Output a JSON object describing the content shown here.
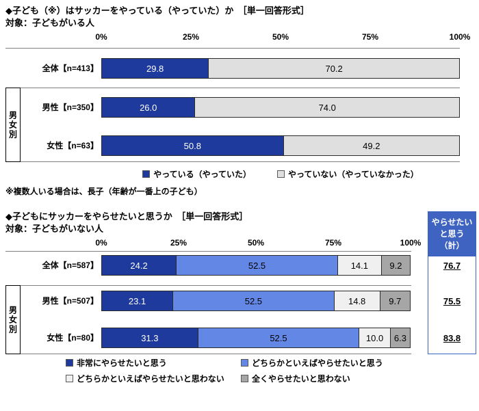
{
  "colors": {
    "dark_blue": "#1e3a9c",
    "light_gray": "#dfdfdf",
    "mid_blue": "#6287e5",
    "pale_gray": "#f0f0f0",
    "dark_gray": "#a6a6a6",
    "summary_blue": "#3f63c1"
  },
  "chart_data": [
    {
      "type": "bar",
      "orientation": "horizontal",
      "stacked": true,
      "title": "◆子ども（※）はサッカーをやっている（やっていた）か　［単一回答形式］",
      "subtitle": "対象：子どもがいる人",
      "categories": [
        "全体【n=413】",
        "男性【n=350】",
        "女性【n=63】"
      ],
      "group_label": "男女別",
      "xlim": [
        0,
        100
      ],
      "ticks": [
        "0%",
        "25%",
        "50%",
        "75%",
        "100%"
      ],
      "series": [
        {
          "name": "やっている（やっていた）",
          "color": "#1e3a9c",
          "text_color": "#ffffff",
          "values": [
            29.8,
            26.0,
            50.8
          ]
        },
        {
          "name": "やっていない（やっていなかった）",
          "color": "#dfdfdf",
          "text_color": "#000000",
          "values": [
            70.2,
            74.0,
            49.2
          ]
        }
      ],
      "footnote": "※複数人いる場合は、長子（年齢が一番上の子ども）"
    },
    {
      "type": "bar",
      "orientation": "horizontal",
      "stacked": true,
      "title": "◆子どもにサッカーをやらせたいと思うか　［単一回答形式］",
      "subtitle": "対象：子どもがいない人",
      "categories": [
        "全体【n=587】",
        "男性【n=507】",
        "女性【n=80】"
      ],
      "group_label": "男女別",
      "xlim": [
        0,
        100
      ],
      "ticks": [
        "0%",
        "25%",
        "50%",
        "75%",
        "100%"
      ],
      "series": [
        {
          "name": "非常にやらせたいと思う",
          "color": "#1e3a9c",
          "text_color": "#ffffff",
          "values": [
            24.2,
            23.1,
            31.3
          ]
        },
        {
          "name": "どちらかといえばやらせたいと思う",
          "color": "#6287e5",
          "text_color": "#000000",
          "values": [
            52.5,
            52.5,
            52.5
          ]
        },
        {
          "name": "どちらかといえばやらせたいと思わない",
          "color": "#f0f0f0",
          "text_color": "#000000",
          "values": [
            14.1,
            14.8,
            10.0
          ]
        },
        {
          "name": "全くやらせたいと思わない",
          "color": "#a6a6a6",
          "text_color": "#000000",
          "values": [
            9.2,
            9.7,
            6.3
          ]
        }
      ],
      "summary": {
        "header_lines": [
          "やらせたい",
          "と思う",
          "（計）"
        ],
        "values": [
          "76.7",
          "75.5",
          "83.8"
        ]
      }
    }
  ]
}
